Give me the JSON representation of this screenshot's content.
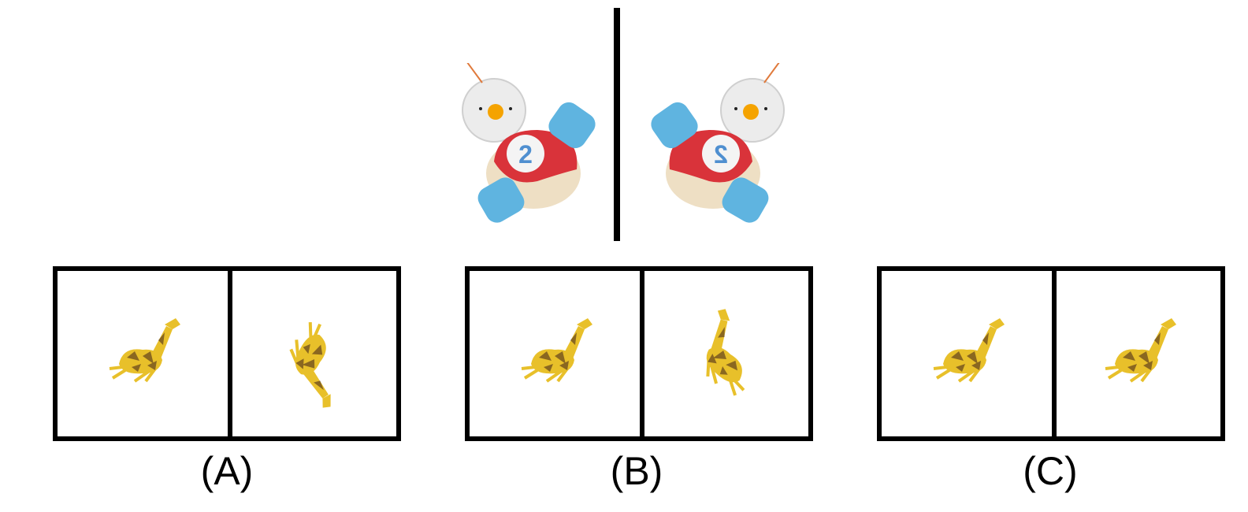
{
  "question": {
    "reference_pair": {
      "object": "toy-snowman-car",
      "number_on_toy": "2",
      "relation": "mirror"
    },
    "options": [
      {
        "label": "(A)",
        "left": "giraffe",
        "right": "giraffe"
      },
      {
        "label": "(B)",
        "left": "giraffe",
        "right": "giraffe"
      },
      {
        "label": "(C)",
        "left": "giraffe",
        "right": "giraffe"
      }
    ]
  },
  "colors": {
    "frame": "#000000",
    "toy_body_red": "#d9333a",
    "toy_wheel_blue": "#5fb4e0",
    "toy_head_white": "#ececec",
    "toy_nose_orange": "#f5a300",
    "giraffe_yellow": "#e8c02a",
    "giraffe_spot": "#6b4a1e"
  }
}
